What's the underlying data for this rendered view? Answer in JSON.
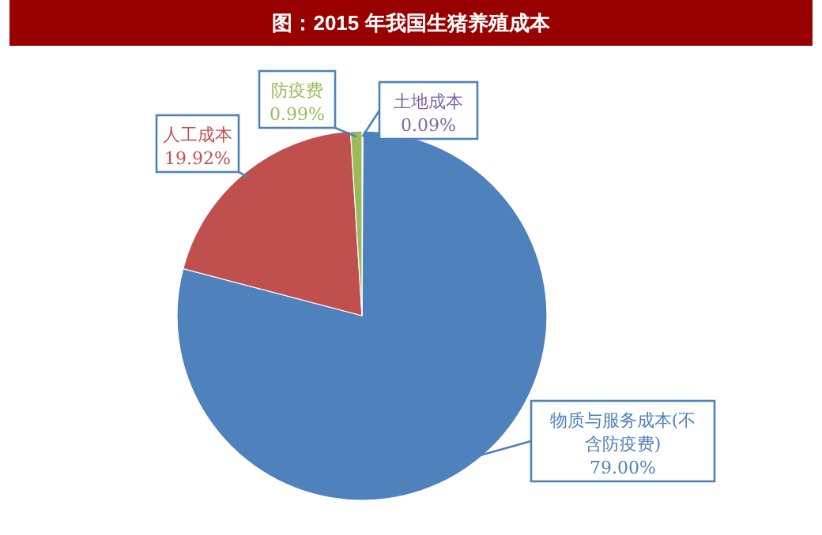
{
  "chart_data": {
    "type": "pie",
    "title": "图：2015 年我国生猪养殖成本",
    "categories": [
      "土地成本",
      "物质与服务成本(不含防疫费)",
      "人工成本",
      "防疫费"
    ],
    "values": [
      0.09,
      79.0,
      19.92,
      0.99
    ],
    "value_labels": [
      "0.09%",
      "79.00%",
      "19.92%",
      "0.99%"
    ],
    "colors": [
      "#8064a2",
      "#4f81bd",
      "#c0504d",
      "#9bbb59"
    ]
  }
}
